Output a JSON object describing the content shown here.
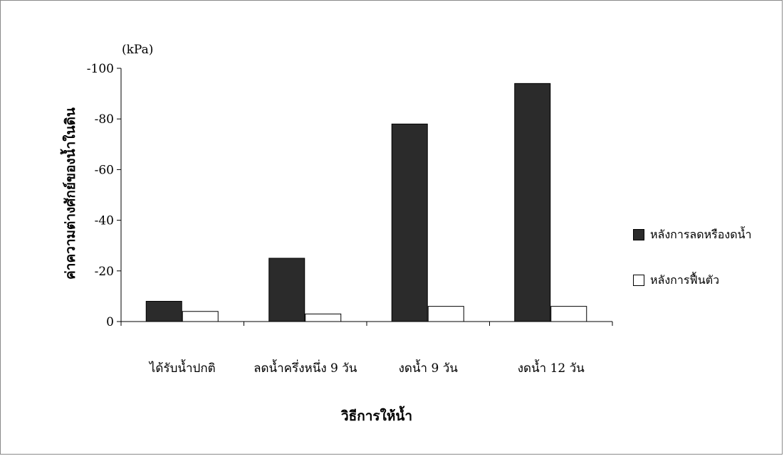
{
  "chart_data": {
    "type": "bar",
    "unit": "(kPa)",
    "ylabel": "ค่าความต่างศักย์ของน้ำในดิน",
    "xlabel": "วิธีการให้น้ำ",
    "categories": [
      "ได้รับน้ำปกติ",
      "ลดน้ำครึ่งหนึ่ง 9 วัน",
      "งดน้ำ 9 วัน",
      "งดน้ำ 12 วัน"
    ],
    "series": [
      {
        "name": "หลังการลดหรืองดน้ำ",
        "values": [
          -8,
          -25,
          -78,
          -94
        ],
        "color": "#2b2b2b"
      },
      {
        "name": "หลังการฟื้นตัว",
        "values": [
          -4,
          -3,
          -6,
          -6
        ],
        "color": "#ffffff"
      }
    ],
    "ylim": [
      0,
      -100
    ],
    "yticks": [
      0,
      -20,
      -40,
      -60,
      -80,
      -100
    ],
    "ytick_labels": [
      "0",
      "-20",
      "-40",
      "-60",
      "-80",
      "-100"
    ],
    "legend_position": "right",
    "grid": false
  }
}
